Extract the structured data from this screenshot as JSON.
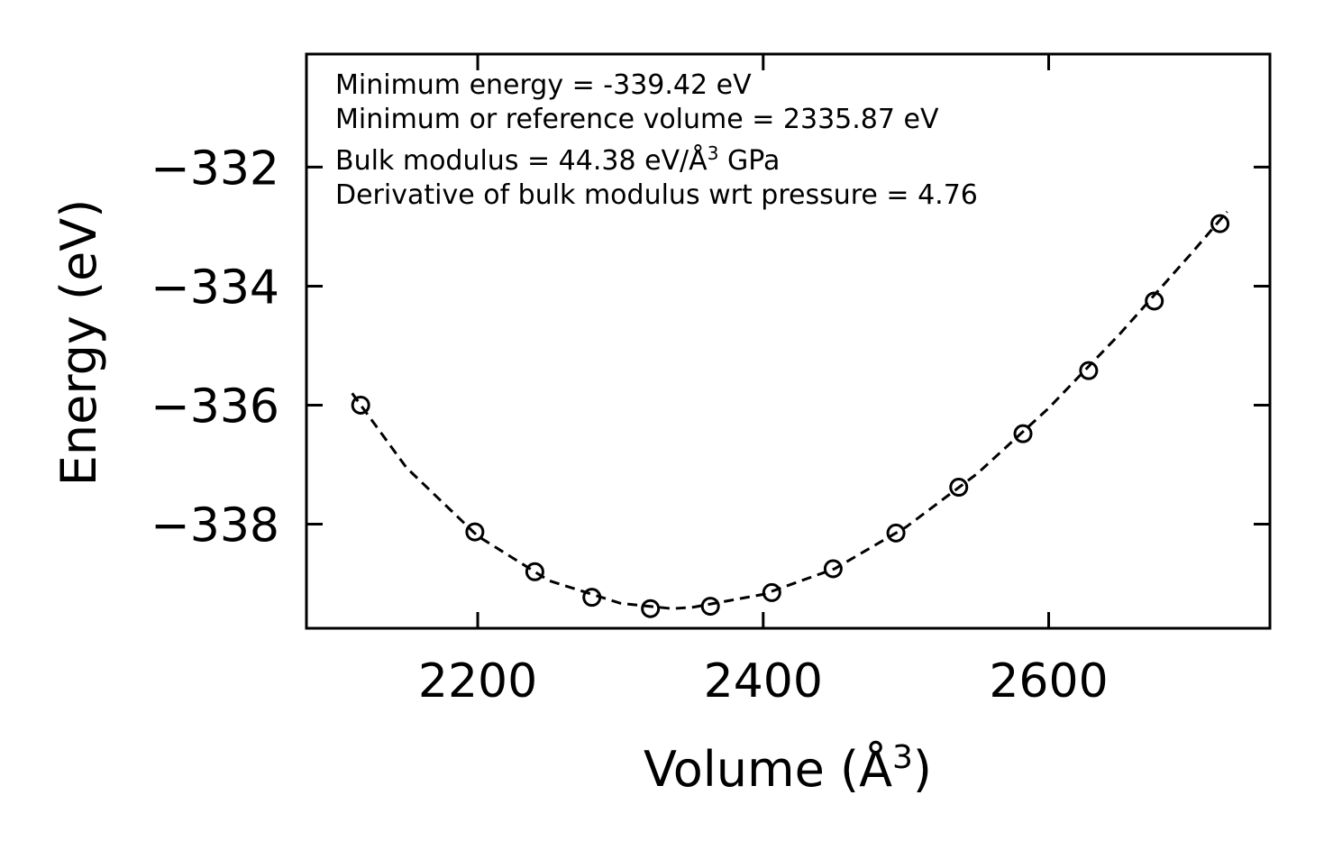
{
  "chart_data": {
    "type": "scatter",
    "title": "",
    "xlabel": "Volume (Å",
    "xlabel_sup": "3",
    "xlabel_end": ")",
    "ylabel": "Energy (eV)",
    "xlim": [
      2080,
      2755
    ],
    "ylim": [
      -339.75,
      -330.1
    ],
    "x_ticks": [
      2200,
      2400,
      2600
    ],
    "x_tick_labels": [
      "2200",
      "2400",
      "2600"
    ],
    "y_ticks": [
      -332,
      -334,
      -336,
      -338
    ],
    "y_tick_labels": [
      "−332",
      "−334",
      "−336",
      "−338"
    ],
    "grid": false,
    "series": [
      {
        "name": "data",
        "style": "open-circle",
        "x": [
          2118,
          2198,
          2240,
          2280,
          2321,
          2363,
          2406,
          2449,
          2493,
          2537,
          2582,
          2628,
          2674,
          2720
        ],
        "y": [
          -336.0,
          -338.13,
          -338.8,
          -339.23,
          -339.42,
          -339.38,
          -339.15,
          -338.75,
          -338.15,
          -337.38,
          -336.48,
          -335.42,
          -334.25,
          -332.95
        ]
      },
      {
        "name": "fit",
        "style": "dashed-line",
        "x": [
          2112,
          2150,
          2200,
          2250,
          2300,
          2336,
          2350,
          2400,
          2450,
          2500,
          2550,
          2600,
          2650,
          2700,
          2725
        ],
        "y": [
          -335.8,
          -337.05,
          -338.2,
          -338.95,
          -339.33,
          -339.42,
          -339.4,
          -339.18,
          -338.75,
          -338.05,
          -337.15,
          -336.05,
          -334.8,
          -333.45,
          -332.75
        ]
      }
    ],
    "annotations": [
      {
        "prefix": "Minimum energy = -339.42 eV",
        "sup": "",
        "suffix": ""
      },
      {
        "prefix": "Minimum or reference volume = 2335.87 eV",
        "sup": "",
        "suffix": ""
      },
      {
        "prefix": "Bulk modulus = 44.38 eV/Å",
        "sup": "3",
        "suffix": " GPa"
      },
      {
        "prefix": "Derivative of bulk modulus wrt pressure = 4.76",
        "sup": "",
        "suffix": ""
      }
    ]
  }
}
